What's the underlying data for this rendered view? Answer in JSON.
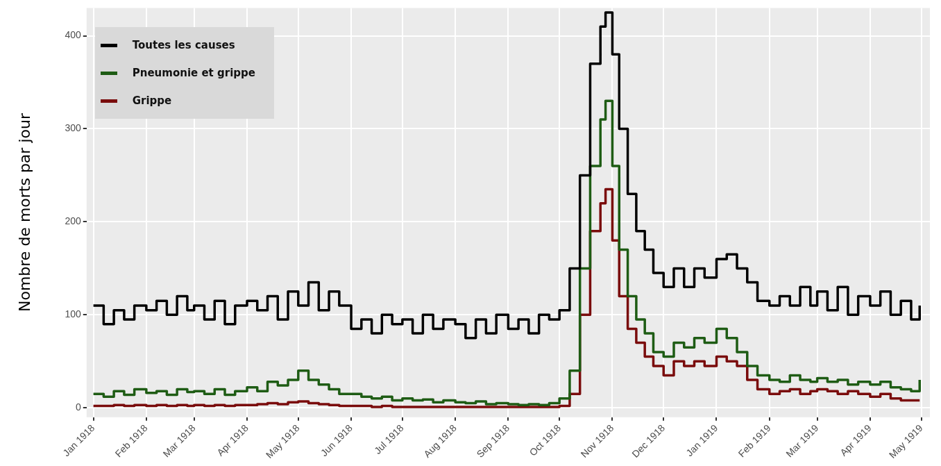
{
  "chart_data": {
    "type": "step",
    "ylabel": "Nombre de morts par jour",
    "legend": "top left",
    "grid": true,
    "marker": "none",
    "line_style": "solid",
    "x": [
      "1918-01-01",
      "1918-01-07",
      "1918-01-13",
      "1918-01-19",
      "1918-01-25",
      "1918-02-01",
      "1918-02-07",
      "1918-02-13",
      "1918-02-19",
      "1918-02-25",
      "1918-03-01",
      "1918-03-07",
      "1918-03-13",
      "1918-03-19",
      "1918-03-25",
      "1918-04-01",
      "1918-04-07",
      "1918-04-13",
      "1918-04-19",
      "1918-04-25",
      "1918-05-01",
      "1918-05-07",
      "1918-05-13",
      "1918-05-19",
      "1918-05-25",
      "1918-06-01",
      "1918-06-07",
      "1918-06-13",
      "1918-06-19",
      "1918-06-25",
      "1918-07-01",
      "1918-07-07",
      "1918-07-13",
      "1918-07-19",
      "1918-07-25",
      "1918-08-01",
      "1918-08-07",
      "1918-08-13",
      "1918-08-19",
      "1918-08-25",
      "1918-09-01",
      "1918-09-07",
      "1918-09-13",
      "1918-09-19",
      "1918-09-25",
      "1918-10-01",
      "1918-10-07",
      "1918-10-13",
      "1918-10-19",
      "1918-10-25",
      "1918-10-28",
      "1918-11-01",
      "1918-11-05",
      "1918-11-10",
      "1918-11-15",
      "1918-11-20",
      "1918-11-25",
      "1918-12-01",
      "1918-12-07",
      "1918-12-13",
      "1918-12-19",
      "1918-12-25",
      "1919-01-01",
      "1919-01-07",
      "1919-01-13",
      "1919-01-19",
      "1919-01-25",
      "1919-02-01",
      "1919-02-07",
      "1919-02-13",
      "1919-02-19",
      "1919-02-25",
      "1919-03-01",
      "1919-03-07",
      "1919-03-13",
      "1919-03-19",
      "1919-03-25",
      "1919-04-01",
      "1919-04-07",
      "1919-04-13",
      "1919-04-19",
      "1919-04-25",
      "1919-04-30"
    ],
    "series": [
      {
        "name": "Toutes les causes",
        "color": "#000000",
        "values": [
          110,
          90,
          105,
          95,
          110,
          105,
          115,
          100,
          120,
          105,
          110,
          95,
          115,
          90,
          110,
          115,
          105,
          120,
          95,
          125,
          110,
          135,
          105,
          125,
          110,
          85,
          95,
          80,
          100,
          90,
          95,
          80,
          100,
          85,
          95,
          90,
          75,
          95,
          80,
          100,
          85,
          95,
          80,
          100,
          95,
          105,
          150,
          250,
          370,
          410,
          425,
          380,
          300,
          230,
          190,
          170,
          145,
          130,
          150,
          130,
          150,
          140,
          160,
          165,
          150,
          135,
          115,
          110,
          120,
          110,
          130,
          110,
          125,
          105,
          130,
          100,
          120,
          110,
          125,
          100,
          115,
          95,
          110
        ]
      },
      {
        "name": "Pneumonie et grippe",
        "color": "#1e5c14",
        "values": [
          15,
          12,
          18,
          14,
          20,
          16,
          18,
          14,
          20,
          17,
          18,
          15,
          20,
          14,
          18,
          22,
          18,
          28,
          24,
          30,
          40,
          30,
          25,
          20,
          15,
          15,
          12,
          10,
          12,
          8,
          10,
          8,
          9,
          6,
          8,
          6,
          5,
          7,
          4,
          5,
          4,
          3,
          4,
          3,
          5,
          10,
          40,
          150,
          260,
          310,
          330,
          260,
          170,
          120,
          95,
          80,
          60,
          55,
          70,
          65,
          75,
          70,
          85,
          75,
          60,
          45,
          35,
          30,
          28,
          35,
          30,
          28,
          32,
          28,
          30,
          25,
          28,
          25,
          28,
          22,
          20,
          18,
          30
        ]
      },
      {
        "name": "Grippe",
        "color": "#7a0c0c",
        "values": [
          2,
          2,
          3,
          2,
          3,
          2,
          3,
          2,
          3,
          2,
          3,
          2,
          3,
          2,
          3,
          3,
          4,
          5,
          4,
          6,
          7,
          5,
          4,
          3,
          2,
          2,
          2,
          1,
          2,
          1,
          1,
          1,
          1,
          1,
          1,
          1,
          1,
          1,
          1,
          1,
          1,
          1,
          1,
          1,
          1,
          2,
          15,
          100,
          190,
          220,
          235,
          180,
          120,
          85,
          70,
          55,
          45,
          35,
          50,
          45,
          50,
          45,
          55,
          50,
          45,
          30,
          20,
          15,
          18,
          20,
          15,
          18,
          20,
          18,
          15,
          18,
          15,
          12,
          15,
          10,
          8,
          8,
          8
        ]
      }
    ],
    "xlim": [
      "1917-12-28",
      "1919-05-06"
    ],
    "xticks": [
      {
        "value": "1918-01",
        "label": "Jan 1918"
      },
      {
        "value": "1918-02",
        "label": "Feb 1918"
      },
      {
        "value": "1918-03",
        "label": "Mar 1918"
      },
      {
        "value": "1918-04",
        "label": "Apr 1918"
      },
      {
        "value": "1918-05",
        "label": "May 1918"
      },
      {
        "value": "1918-06",
        "label": "Jun 1918"
      },
      {
        "value": "1918-07",
        "label": "Jul 1918"
      },
      {
        "value": "1918-08",
        "label": "Aug 1918"
      },
      {
        "value": "1918-09",
        "label": "Sep 1918"
      },
      {
        "value": "1918-10",
        "label": "Oct 1918"
      },
      {
        "value": "1918-11",
        "label": "Nov 1918"
      },
      {
        "value": "1918-12",
        "label": "Dec 1918"
      },
      {
        "value": "1919-01",
        "label": "Jan 1919"
      },
      {
        "value": "1919-02",
        "label": "Feb 1919"
      },
      {
        "value": "1919-03",
        "label": "Mar 1919"
      },
      {
        "value": "1919-04",
        "label": "Apr 1919"
      },
      {
        "value": "1919-05",
        "label": "May 1919"
      }
    ],
    "ylim": [
      -10,
      430
    ],
    "yticks": [
      0,
      100,
      200,
      300,
      400
    ]
  }
}
